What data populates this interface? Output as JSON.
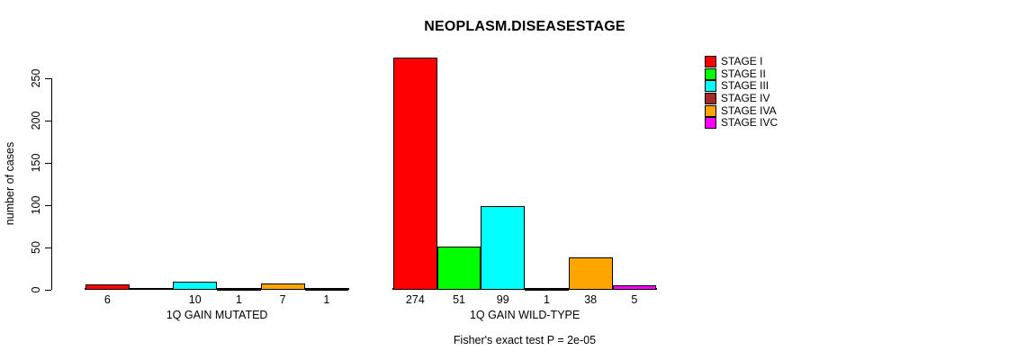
{
  "chart_data": {
    "type": "bar",
    "title": "NEOPLASM.DISEASESTAGE",
    "ylabel": "number of cases",
    "xlabel": "",
    "yticks": [
      0,
      50,
      100,
      150,
      200,
      250
    ],
    "ylim": [
      0,
      280
    ],
    "grid": false,
    "legend_position": "right",
    "categories": [
      "1Q GAIN MUTATED",
      "1Q GAIN WILD-TYPE"
    ],
    "series": [
      {
        "name": "STAGE I",
        "color": "#FF0000",
        "values": [
          6,
          274
        ]
      },
      {
        "name": "STAGE II",
        "color": "#00FF00",
        "values": [
          0,
          51
        ]
      },
      {
        "name": "STAGE III",
        "color": "#00FFFF",
        "values": [
          10,
          99
        ]
      },
      {
        "name": "STAGE IV",
        "color": "#A52A2A",
        "values": [
          1,
          1
        ]
      },
      {
        "name": "STAGE IVA",
        "color": "#FFA500",
        "values": [
          7,
          38
        ]
      },
      {
        "name": "STAGE IVC",
        "color": "#FF00FF",
        "values": [
          1,
          5
        ]
      }
    ],
    "bar_labels_note": "count shown under each bar only when value > 0",
    "annotation": "Fisher's exact test P = 2e-05",
    "axis_color": "#000000",
    "bar_border_color": "#000000"
  }
}
